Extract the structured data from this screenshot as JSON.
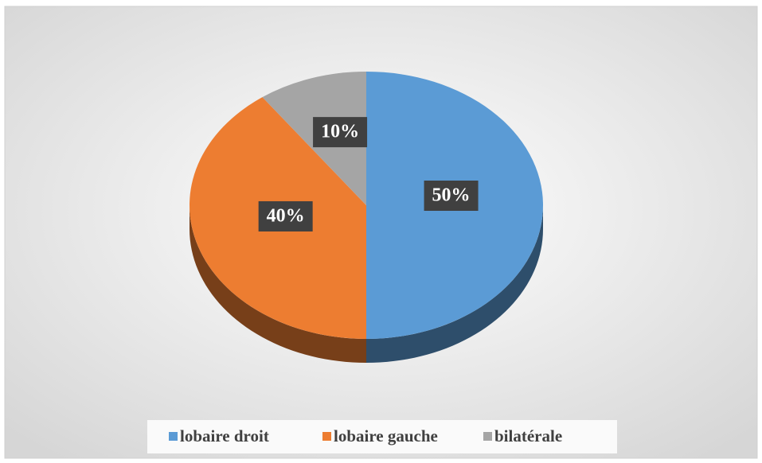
{
  "chart_data": {
    "type": "pie",
    "categories": [
      "lobaire droit",
      "lobaire gauche",
      "bilatérale"
    ],
    "values": [
      50,
      40,
      10
    ],
    "value_labels": [
      "50%",
      "40%",
      "10%"
    ],
    "colors": [
      "#5b9bd5",
      "#ed7d31",
      "#a5a5a5"
    ],
    "legend": "bottom"
  }
}
